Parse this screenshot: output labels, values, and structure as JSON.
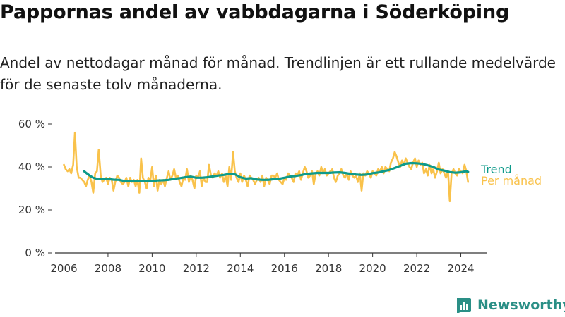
{
  "title": "Pappornas andel av vabbdagarna i Söderköping",
  "subtitle": "Andel av nettodagar månad för månad. Trendlinjen är ett rullande medelvärde för de senaste tolv månaderna.",
  "brand": {
    "name": "Newsworthy",
    "icon": "newsworthy-logo-icon",
    "color": "#2a8f86"
  },
  "colors": {
    "trend": "#0e9a8a",
    "monthly": "#f9c24b",
    "axis": "#333333"
  },
  "chart_data": {
    "type": "line",
    "x_unit": "year",
    "xlim": [
      2005.6,
      2025.2
    ],
    "ylim": [
      0,
      60
    ],
    "y_ticks": [
      {
        "value": 0,
        "label": "0 %"
      },
      {
        "value": 20,
        "label": "20 %"
      },
      {
        "value": 40,
        "label": "40 %"
      },
      {
        "value": 60,
        "label": "60 %"
      }
    ],
    "x_ticks": [
      {
        "value": 2006,
        "label": "2006"
      },
      {
        "value": 2008,
        "label": "2008"
      },
      {
        "value": 2010,
        "label": "2010"
      },
      {
        "value": 2012,
        "label": "2012"
      },
      {
        "value": 2014,
        "label": "2014"
      },
      {
        "value": 2016,
        "label": "2016"
      },
      {
        "value": 2018,
        "label": "2018"
      },
      {
        "value": 2020,
        "label": "2020"
      },
      {
        "value": 2022,
        "label": "2022"
      },
      {
        "value": 2024,
        "label": "2024"
      }
    ],
    "grid": false,
    "legend": "end-of-line labels, right",
    "series": [
      {
        "name": "Per månad",
        "color": "#f9c24b",
        "points": [
          [
            2006.0,
            41
          ],
          [
            2006.08,
            39
          ],
          [
            2006.17,
            38
          ],
          [
            2006.25,
            39
          ],
          [
            2006.33,
            37
          ],
          [
            2006.42,
            41
          ],
          [
            2006.5,
            56
          ],
          [
            2006.58,
            40
          ],
          [
            2006.67,
            35
          ],
          [
            2006.75,
            35
          ],
          [
            2006.83,
            34
          ],
          [
            2006.92,
            33
          ],
          [
            2007.0,
            31
          ],
          [
            2007.08,
            34
          ],
          [
            2007.17,
            36
          ],
          [
            2007.25,
            33
          ],
          [
            2007.33,
            28
          ],
          [
            2007.42,
            37
          ],
          [
            2007.5,
            38
          ],
          [
            2007.58,
            48
          ],
          [
            2007.67,
            36
          ],
          [
            2007.75,
            33
          ],
          [
            2007.83,
            34
          ],
          [
            2007.92,
            35
          ],
          [
            2008.0,
            32
          ],
          [
            2008.08,
            35
          ],
          [
            2008.17,
            34
          ],
          [
            2008.25,
            29
          ],
          [
            2008.33,
            33
          ],
          [
            2008.42,
            36
          ],
          [
            2008.5,
            35
          ],
          [
            2008.58,
            33
          ],
          [
            2008.67,
            32
          ],
          [
            2008.75,
            33
          ],
          [
            2008.83,
            35
          ],
          [
            2008.92,
            31
          ],
          [
            2009.0,
            35
          ],
          [
            2009.08,
            33
          ],
          [
            2009.17,
            34
          ],
          [
            2009.25,
            31
          ],
          [
            2009.33,
            34
          ],
          [
            2009.42,
            28
          ],
          [
            2009.5,
            44
          ],
          [
            2009.58,
            35
          ],
          [
            2009.67,
            33
          ],
          [
            2009.75,
            30
          ],
          [
            2009.83,
            35
          ],
          [
            2009.92,
            34
          ],
          [
            2010.0,
            40
          ],
          [
            2010.08,
            31
          ],
          [
            2010.17,
            36
          ],
          [
            2010.25,
            29
          ],
          [
            2010.33,
            34
          ],
          [
            2010.42,
            32
          ],
          [
            2010.5,
            34
          ],
          [
            2010.58,
            31
          ],
          [
            2010.67,
            35
          ],
          [
            2010.75,
            38
          ],
          [
            2010.83,
            34
          ],
          [
            2010.92,
            36
          ],
          [
            2011.0,
            39
          ],
          [
            2011.08,
            35
          ],
          [
            2011.17,
            36
          ],
          [
            2011.25,
            33
          ],
          [
            2011.33,
            31
          ],
          [
            2011.42,
            35
          ],
          [
            2011.5,
            34
          ],
          [
            2011.58,
            39
          ],
          [
            2011.67,
            33
          ],
          [
            2011.75,
            36
          ],
          [
            2011.83,
            34
          ],
          [
            2011.92,
            30
          ],
          [
            2012.0,
            36
          ],
          [
            2012.08,
            35
          ],
          [
            2012.17,
            38
          ],
          [
            2012.25,
            31
          ],
          [
            2012.33,
            35
          ],
          [
            2012.42,
            33
          ],
          [
            2012.5,
            33
          ],
          [
            2012.58,
            41
          ],
          [
            2012.67,
            36
          ],
          [
            2012.75,
            35
          ],
          [
            2012.83,
            37
          ],
          [
            2012.92,
            36
          ],
          [
            2013.0,
            38
          ],
          [
            2013.08,
            35
          ],
          [
            2013.17,
            37
          ],
          [
            2013.25,
            33
          ],
          [
            2013.33,
            36
          ],
          [
            2013.42,
            31
          ],
          [
            2013.5,
            40
          ],
          [
            2013.58,
            34
          ],
          [
            2013.67,
            47
          ],
          [
            2013.75,
            38
          ],
          [
            2013.83,
            35
          ],
          [
            2013.92,
            33
          ],
          [
            2014.0,
            37
          ],
          [
            2014.08,
            33
          ],
          [
            2014.17,
            36
          ],
          [
            2014.25,
            34
          ],
          [
            2014.33,
            31
          ],
          [
            2014.42,
            36
          ],
          [
            2014.5,
            35
          ],
          [
            2014.58,
            34
          ],
          [
            2014.67,
            32
          ],
          [
            2014.75,
            34
          ],
          [
            2014.83,
            35
          ],
          [
            2014.92,
            33
          ],
          [
            2015.0,
            36
          ],
          [
            2015.08,
            31
          ],
          [
            2015.17,
            35
          ],
          [
            2015.25,
            34
          ],
          [
            2015.33,
            32
          ],
          [
            2015.42,
            36
          ],
          [
            2015.5,
            36
          ],
          [
            2015.58,
            35
          ],
          [
            2015.67,
            37
          ],
          [
            2015.75,
            34
          ],
          [
            2015.83,
            33
          ],
          [
            2015.92,
            32
          ],
          [
            2016.0,
            35
          ],
          [
            2016.08,
            34
          ],
          [
            2016.17,
            37
          ],
          [
            2016.25,
            36
          ],
          [
            2016.33,
            35
          ],
          [
            2016.42,
            33
          ],
          [
            2016.5,
            37
          ],
          [
            2016.58,
            36
          ],
          [
            2016.67,
            38
          ],
          [
            2016.75,
            34
          ],
          [
            2016.83,
            37
          ],
          [
            2016.92,
            40
          ],
          [
            2017.0,
            38
          ],
          [
            2017.08,
            35
          ],
          [
            2017.17,
            36
          ],
          [
            2017.25,
            38
          ],
          [
            2017.33,
            32
          ],
          [
            2017.42,
            37
          ],
          [
            2017.5,
            38
          ],
          [
            2017.58,
            36
          ],
          [
            2017.67,
            40
          ],
          [
            2017.75,
            37
          ],
          [
            2017.83,
            39
          ],
          [
            2017.92,
            36
          ],
          [
            2018.0,
            37
          ],
          [
            2018.08,
            38
          ],
          [
            2018.17,
            39
          ],
          [
            2018.25,
            35
          ],
          [
            2018.33,
            33
          ],
          [
            2018.42,
            36
          ],
          [
            2018.5,
            37
          ],
          [
            2018.58,
            39
          ],
          [
            2018.67,
            36
          ],
          [
            2018.75,
            35
          ],
          [
            2018.83,
            37
          ],
          [
            2018.92,
            34
          ],
          [
            2019.0,
            38
          ],
          [
            2019.08,
            36
          ],
          [
            2019.17,
            35
          ],
          [
            2019.25,
            36
          ],
          [
            2019.33,
            33
          ],
          [
            2019.42,
            37
          ],
          [
            2019.5,
            29
          ],
          [
            2019.58,
            37
          ],
          [
            2019.67,
            36
          ],
          [
            2019.75,
            38
          ],
          [
            2019.83,
            37
          ],
          [
            2019.92,
            35
          ],
          [
            2020.0,
            38
          ],
          [
            2020.08,
            37
          ],
          [
            2020.17,
            36
          ],
          [
            2020.25,
            39
          ],
          [
            2020.33,
            38
          ],
          [
            2020.42,
            40
          ],
          [
            2020.5,
            37
          ],
          [
            2020.58,
            40
          ],
          [
            2020.67,
            39
          ],
          [
            2020.75,
            38
          ],
          [
            2020.83,
            42
          ],
          [
            2020.92,
            44
          ],
          [
            2021.0,
            47
          ],
          [
            2021.08,
            45
          ],
          [
            2021.17,
            42
          ],
          [
            2021.25,
            40
          ],
          [
            2021.33,
            43
          ],
          [
            2021.42,
            41
          ],
          [
            2021.5,
            44
          ],
          [
            2021.58,
            42
          ],
          [
            2021.67,
            40
          ],
          [
            2021.75,
            39
          ],
          [
            2021.83,
            42
          ],
          [
            2021.92,
            44
          ],
          [
            2022.0,
            40
          ],
          [
            2022.08,
            43
          ],
          [
            2022.17,
            41
          ],
          [
            2022.25,
            42
          ],
          [
            2022.33,
            37
          ],
          [
            2022.42,
            39
          ],
          [
            2022.5,
            36
          ],
          [
            2022.58,
            41
          ],
          [
            2022.67,
            37
          ],
          [
            2022.75,
            39
          ],
          [
            2022.83,
            35
          ],
          [
            2022.92,
            38
          ],
          [
            2023.0,
            42
          ],
          [
            2023.08,
            37
          ],
          [
            2023.17,
            39
          ],
          [
            2023.25,
            37
          ],
          [
            2023.33,
            35
          ],
          [
            2023.42,
            38
          ],
          [
            2023.5,
            24
          ],
          [
            2023.58,
            37
          ],
          [
            2023.67,
            39
          ],
          [
            2023.75,
            37
          ],
          [
            2023.83,
            36
          ],
          [
            2023.92,
            39
          ],
          [
            2024.0,
            38
          ],
          [
            2024.08,
            37
          ],
          [
            2024.17,
            41
          ],
          [
            2024.25,
            38
          ],
          [
            2024.33,
            33
          ]
        ]
      },
      {
        "name": "Trend",
        "color": "#0e9a8a",
        "points": [
          [
            2006.92,
            38
          ],
          [
            2007.0,
            37.3
          ],
          [
            2007.17,
            36
          ],
          [
            2007.33,
            35
          ],
          [
            2007.5,
            34.5
          ],
          [
            2007.75,
            34.5
          ],
          [
            2008.0,
            34.4
          ],
          [
            2008.25,
            34.1
          ],
          [
            2008.5,
            34
          ],
          [
            2008.75,
            33.4
          ],
          [
            2009.0,
            33.4
          ],
          [
            2009.25,
            33.4
          ],
          [
            2009.5,
            33.5
          ],
          [
            2009.75,
            33.3
          ],
          [
            2010.0,
            33.4
          ],
          [
            2010.25,
            33.7
          ],
          [
            2010.5,
            33.8
          ],
          [
            2010.75,
            34
          ],
          [
            2011.0,
            34.5
          ],
          [
            2011.25,
            34.8
          ],
          [
            2011.5,
            35.2
          ],
          [
            2011.75,
            35.5
          ],
          [
            2012.0,
            35
          ],
          [
            2012.25,
            35
          ],
          [
            2012.5,
            35.2
          ],
          [
            2012.75,
            35.6
          ],
          [
            2013.0,
            36
          ],
          [
            2013.25,
            36.3
          ],
          [
            2013.5,
            36.8
          ],
          [
            2013.75,
            36.6
          ],
          [
            2014.0,
            35.2
          ],
          [
            2014.25,
            34.6
          ],
          [
            2014.5,
            34.8
          ],
          [
            2014.75,
            34.2
          ],
          [
            2015.0,
            34
          ],
          [
            2015.25,
            34
          ],
          [
            2015.5,
            34.3
          ],
          [
            2015.75,
            34.5
          ],
          [
            2016.0,
            35
          ],
          [
            2016.25,
            35.5
          ],
          [
            2016.5,
            35.8
          ],
          [
            2016.75,
            36.2
          ],
          [
            2017.0,
            36.8
          ],
          [
            2017.25,
            37
          ],
          [
            2017.5,
            37.2
          ],
          [
            2017.75,
            37.2
          ],
          [
            2018.0,
            37.2
          ],
          [
            2018.25,
            37.4
          ],
          [
            2018.5,
            37.5
          ],
          [
            2018.75,
            37.2
          ],
          [
            2019.0,
            36.8
          ],
          [
            2019.25,
            36.5
          ],
          [
            2019.5,
            36.3
          ],
          [
            2019.75,
            36.5
          ],
          [
            2020.0,
            37.1
          ],
          [
            2020.25,
            37.4
          ],
          [
            2020.5,
            38
          ],
          [
            2020.75,
            38.6
          ],
          [
            2021.0,
            39.5
          ],
          [
            2021.25,
            40.5
          ],
          [
            2021.5,
            41.5
          ],
          [
            2021.75,
            41.8
          ],
          [
            2022.0,
            41.7
          ],
          [
            2022.25,
            41.4
          ],
          [
            2022.5,
            40.8
          ],
          [
            2022.75,
            40
          ],
          [
            2023.0,
            38.8
          ],
          [
            2023.25,
            38.3
          ],
          [
            2023.5,
            37.6
          ],
          [
            2023.75,
            37.3
          ],
          [
            2024.0,
            37.5
          ],
          [
            2024.25,
            38
          ],
          [
            2024.33,
            37.7
          ]
        ]
      }
    ]
  }
}
